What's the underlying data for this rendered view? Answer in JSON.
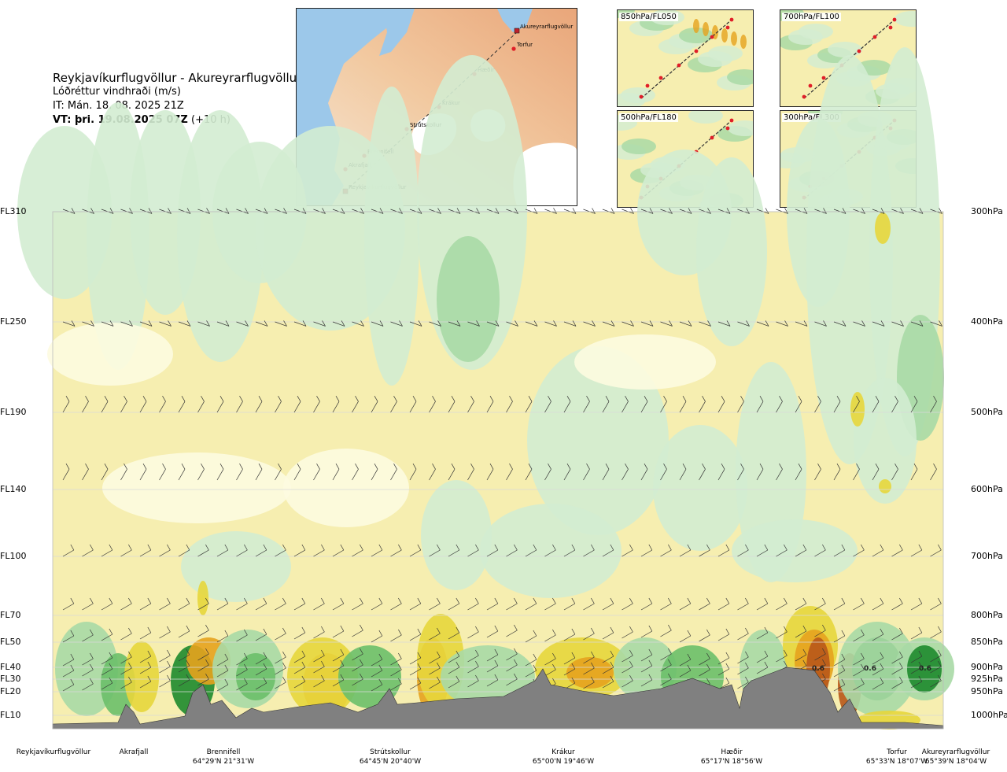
{
  "header": {
    "title": "Reykjavíkurflugvöllur - Akureyrarflugvöllur",
    "subtitle": "Lóðréttur vindhraði (m/s)",
    "issue_time": "IT: Mán. 18. 08. 2025 21Z",
    "valid_prefix": "VT: þri. 19.08.2025 07Z",
    "valid_suffix": "(+10 h)"
  },
  "route_map": {
    "points": [
      "Akureyrarflugvöllur",
      "Torfur",
      "Hæðir",
      "Krákur",
      "Strútskollur",
      "Brennifell",
      "Akrafjall",
      "Reykjavíkurflugvöllur"
    ]
  },
  "level_panels": [
    {
      "label": "850hPa/FL050"
    },
    {
      "label": "700hPa/FL100"
    },
    {
      "label": "500hPa/FL180"
    },
    {
      "label": "300hPa/FL300"
    }
  ],
  "colors": {
    "dark_green": "#1e8a2e",
    "mid_green": "#6cbf6a",
    "light_green": "#a9d9a6",
    "pale_green": "#d3ecd1",
    "cream": "#fdfbe0",
    "pale_yellow": "#f6eeb0",
    "yellow": "#e7d63c",
    "orange": "#e6a21e",
    "brown": "#b8561a",
    "terrain": "#808080"
  },
  "chart_data": {
    "type": "heatmap",
    "title": "Lóðréttur vindhraði (m/s)",
    "y_levels": [
      {
        "fl": "FL310",
        "hpa": "300hPa"
      },
      {
        "fl": "FL250",
        "hpa": "400hPa"
      },
      {
        "fl": "FL190",
        "hpa": "500hPa"
      },
      {
        "fl": "FL140",
        "hpa": "600hPa"
      },
      {
        "fl": "FL100",
        "hpa": "700hPa"
      },
      {
        "fl": "FL70",
        "hpa": "800hPa"
      },
      {
        "fl": "FL50",
        "hpa": "850hPa"
      },
      {
        "fl": "FL40",
        "hpa": "900hPa"
      },
      {
        "fl": "FL30",
        "hpa": "925hPa"
      },
      {
        "fl": "FL20",
        "hpa": "950hPa"
      },
      {
        "fl": "FL10",
        "hpa": "1000hPa"
      }
    ],
    "locations": [
      {
        "name": "Reykjavíkurflugvöllur",
        "coord": ""
      },
      {
        "name": "Akrafjall",
        "coord": ""
      },
      {
        "name": "Brennifell",
        "coord": "64°29'N 21°31'W"
      },
      {
        "name": "Strútskollur",
        "coord": "64°45'N 20°40'W"
      },
      {
        "name": "Krákur",
        "coord": "65°00'N 19°46'W"
      },
      {
        "name": "Hæðir",
        "coord": "65°17'N 18°56'W"
      },
      {
        "name": "Torfur",
        "coord": "65°33'N 18°07'W"
      },
      {
        "name": "Akureyrarflugvöllur",
        "coord": "65°39'N 18°04'W"
      }
    ],
    "annotations": [
      "0.6",
      "0.6",
      "0.6"
    ]
  }
}
